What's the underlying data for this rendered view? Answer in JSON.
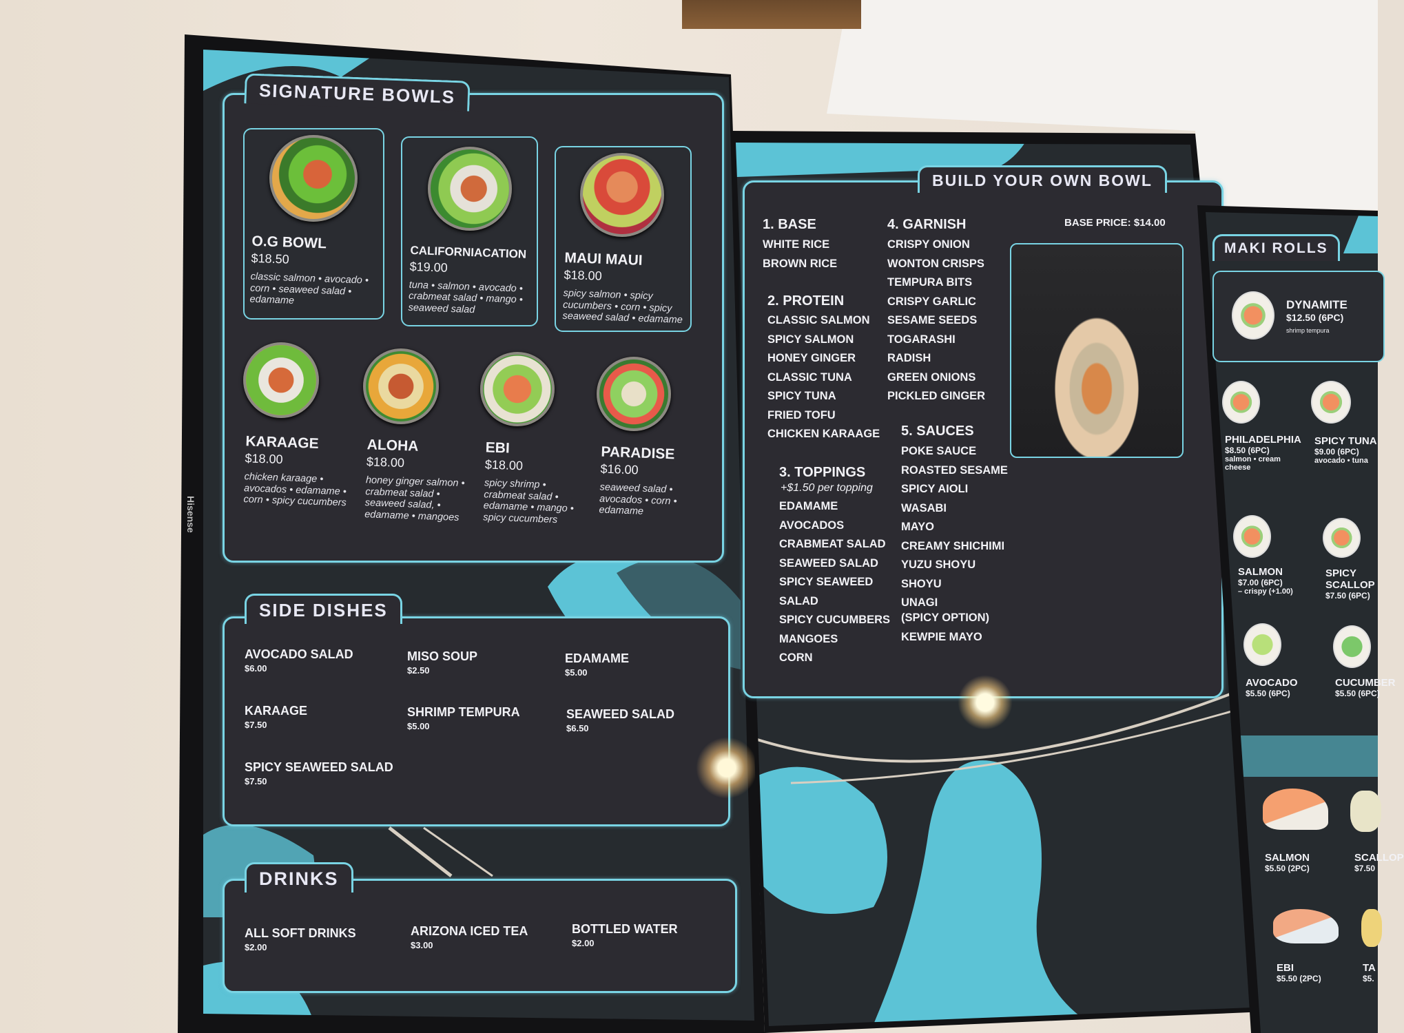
{
  "left_tv": {
    "brand": "Hisense",
    "signature_bowls": {
      "title": "SIGNATURE BOWLS",
      "items": [
        {
          "name": "O.G BOWL",
          "price": "$18.50",
          "desc": "classic salmon • avocado • corn • seaweed salad • edamame"
        },
        {
          "name": "CALIFORNIACATION",
          "price": "$19.00",
          "desc": "tuna • salmon • avocado • crabmeat salad • mango • seaweed salad"
        },
        {
          "name": "MAUI MAUI",
          "price": "$18.00",
          "desc": "spicy salmon • spicy cucumbers • corn • spicy seaweed salad • edamame"
        },
        {
          "name": "KARAAGE",
          "price": "$18.00",
          "desc": "chicken karaage • avocados • edamame • corn • spicy cucumbers"
        },
        {
          "name": "ALOHA",
          "price": "$18.00",
          "desc": "honey ginger salmon • crabmeat salad • seaweed salad, • edamame • mangoes"
        },
        {
          "name": "EBI",
          "price": "$18.00",
          "desc": "spicy shrimp • crabmeat salad • edamame • mango • spicy cucumbers"
        },
        {
          "name": "PARADISE",
          "price": "$16.00",
          "desc": "seaweed salad • avocados • corn • edamame"
        }
      ]
    },
    "side_dishes": {
      "title": "SIDE DISHES",
      "items": [
        {
          "name": "AVOCADO SALAD",
          "price": "$6.00"
        },
        {
          "name": "MISO SOUP",
          "price": "$2.50"
        },
        {
          "name": "EDAMAME",
          "price": "$5.00"
        },
        {
          "name": "KARAAGE",
          "price": "$7.50"
        },
        {
          "name": "SHRIMP TEMPURA",
          "price": "$5.00"
        },
        {
          "name": "SEAWEED SALAD",
          "price": "$6.50"
        },
        {
          "name": "SPICY SEAWEED SALAD",
          "price": "$7.50"
        }
      ]
    },
    "drinks": {
      "title": "DRINKS",
      "items": [
        {
          "name": "ALL SOFT DRINKS",
          "price": "$2.00"
        },
        {
          "name": "ARIZONA ICED TEA",
          "price": "$3.00"
        },
        {
          "name": "BOTTLED WATER",
          "price": "$2.00"
        }
      ]
    }
  },
  "middle_tv": {
    "title": "BUILD YOUR OWN BOWL",
    "base_price": "BASE PRICE: $14.00",
    "base": {
      "heading": "1. BASE",
      "items": [
        "WHITE RICE",
        "BROWN RICE"
      ]
    },
    "protein": {
      "heading": "2. PROTEIN",
      "items": [
        "CLASSIC SALMON",
        "SPICY SALMON",
        "HONEY GINGER",
        "CLASSIC TUNA",
        "SPICY TUNA",
        "FRIED TOFU",
        "CHICKEN KARAAGE"
      ]
    },
    "toppings": {
      "heading": "3. TOPPINGS",
      "note": "+$1.50 per topping",
      "items": [
        "EDAMAME",
        "AVOCADOS",
        "CRABMEAT SALAD",
        "SEAWEED SALAD",
        "SPICY SEAWEED",
        "SALAD",
        "SPICY CUCUMBERS",
        "MANGOES",
        "CORN"
      ]
    },
    "garnish": {
      "heading": "4. GARNISH",
      "items": [
        "CRISPY ONION",
        "WONTON CRISPS",
        "TEMPURA BITS",
        "CRISPY GARLIC",
        "SESAME SEEDS",
        "TOGARASHI",
        "RADISH",
        "GREEN ONIONS",
        "PICKLED GINGER"
      ]
    },
    "sauces": {
      "heading": "5. SAUCES",
      "items": [
        "POKE SAUCE",
        "ROASTED SESAME",
        "SPICY AIOLI",
        "WASABI",
        "MAYO",
        "CREAMY SHICHIMI",
        "YUZU SHOYU",
        "SHOYU",
        "UNAGI",
        "(SPICY OPTION)",
        "KEWPIE MAYO"
      ]
    }
  },
  "right_tv": {
    "title": "MAKI ROLLS",
    "featured": {
      "name": "DYNAMITE",
      "price": "$12.50 (6PC)",
      "desc": "shrimp tempura"
    },
    "rolls": [
      {
        "name": "PHILADELPHIA",
        "price": "$8.50 (6PC)",
        "desc": "salmon • cream cheese"
      },
      {
        "name": "SPICY TUNA",
        "price": "$9.00 (6PC)",
        "desc": "avocado • tuna"
      },
      {
        "name": "SALMON",
        "price": "$7.00 (6PC)",
        "desc": "– crispy (+1.00)"
      },
      {
        "name": "SPICY SCALLOP",
        "price": "$7.50 (6PC)",
        "desc": ""
      },
      {
        "name": "AVOCADO",
        "price": "$5.50 (6PC)",
        "desc": ""
      },
      {
        "name": "CUCUMBER",
        "price": "$5.50 (6PC)",
        "desc": ""
      }
    ],
    "nigiri": [
      {
        "name": "SALMON",
        "price": "$5.50 (2PC)"
      },
      {
        "name": "SCALLOP",
        "price": "$7.50"
      },
      {
        "name": "EBI",
        "price": "$5.50 (2PC)"
      },
      {
        "name": "TA",
        "price": "$5."
      }
    ]
  },
  "colors": {
    "accent": "#79d4e4",
    "panel": "#2c2b31",
    "screen": "#262b2f",
    "teal_shape": "#5cc3d6"
  }
}
